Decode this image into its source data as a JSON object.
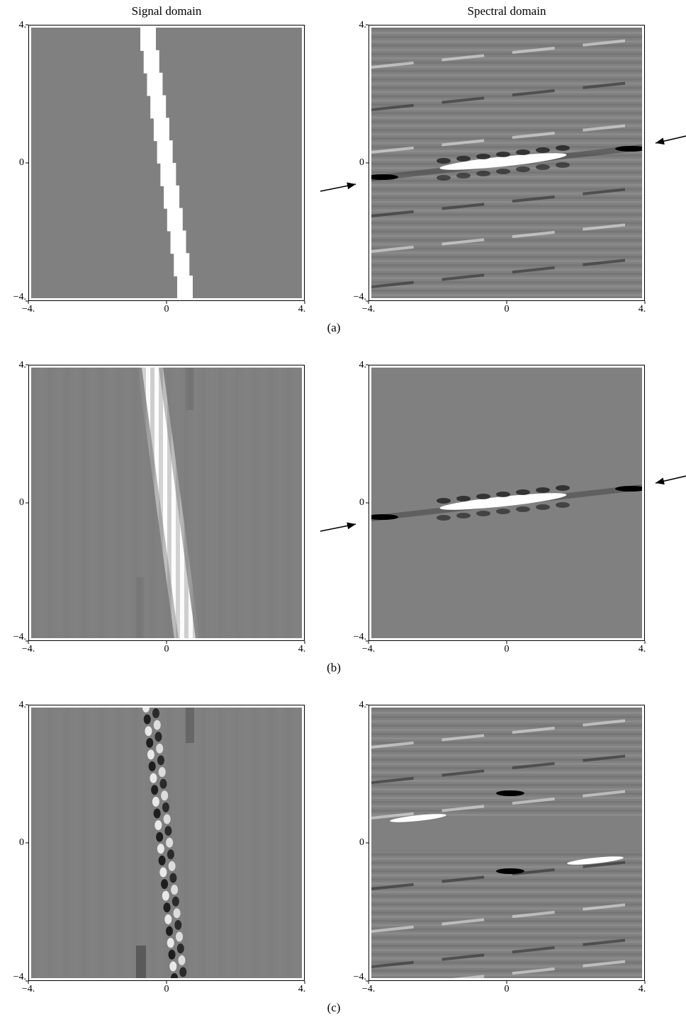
{
  "figure": {
    "column_titles": [
      "Signal domain",
      "Spectral domain"
    ],
    "rows": [
      {
        "caption": "(a)",
        "left": {
          "name": "signal-panel-a",
          "content": "sharp-band"
        },
        "right": {
          "name": "spectral-panel-a",
          "content": "full-ripple",
          "arrows": true
        }
      },
      {
        "caption": "(b)",
        "left": {
          "name": "signal-panel-b",
          "content": "smooth-band"
        },
        "right": {
          "name": "spectral-panel-b",
          "content": "central-band",
          "arrows": true
        }
      },
      {
        "caption": "(c)",
        "left": {
          "name": "signal-panel-c",
          "content": "oscillating-band"
        },
        "right": {
          "name": "spectral-panel-c",
          "content": "split-ripple",
          "arrows": false
        }
      }
    ],
    "axis": {
      "x_ticks": [
        "−4.",
        "0",
        "4."
      ],
      "y_ticks": [
        "4.",
        "0",
        "−4."
      ],
      "range": [
        -4,
        4
      ]
    },
    "colors": {
      "background": "#808080",
      "bright": "#ffffff",
      "dark": "#000000",
      "frame": "#000000"
    }
  }
}
